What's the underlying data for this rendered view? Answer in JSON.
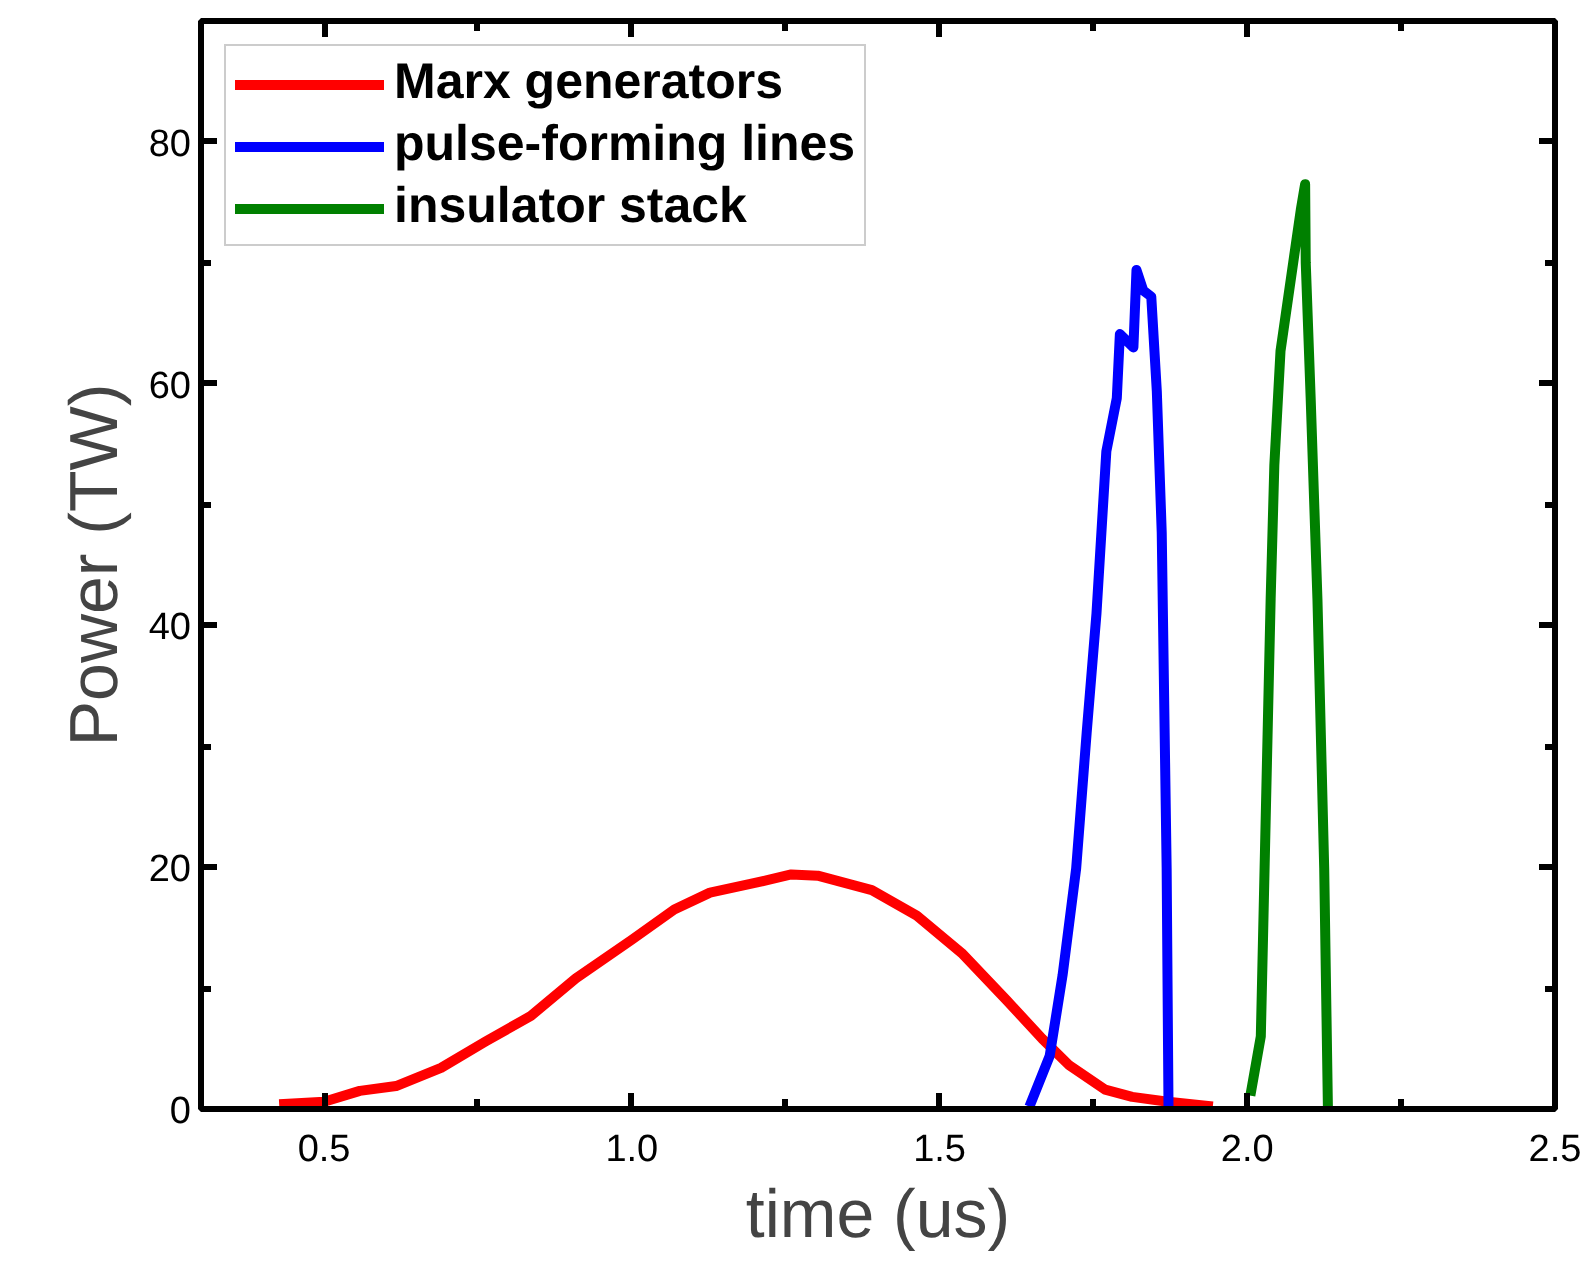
{
  "chart_data": {
    "type": "line",
    "xlabel": "time (us)",
    "ylabel": "Power (TW)",
    "xlim": [
      0.3,
      2.5
    ],
    "ylim": [
      0,
      90
    ],
    "xticks": [
      {
        "value": 0.5,
        "label": "0.5"
      },
      {
        "value": 1.0,
        "label": "1.0"
      },
      {
        "value": 1.5,
        "label": "1.5"
      },
      {
        "value": 2.0,
        "label": "2.0"
      },
      {
        "value": 2.5,
        "label": "2.5"
      }
    ],
    "yticks": [
      0,
      20,
      40,
      60,
      80
    ],
    "grid": false,
    "legend": "top left",
    "marker": "none",
    "line_style": "solid",
    "series": [
      {
        "name": "Marx generators",
        "color": "#ff0000",
        "x": [
          0.427,
          0.5,
          0.558,
          0.617,
          0.69,
          0.763,
          0.836,
          0.909,
          1.0,
          1.069,
          1.127,
          1.2,
          1.259,
          1.302,
          1.39,
          1.463,
          1.536,
          1.609,
          1.667,
          1.711,
          1.769,
          1.813,
          1.871,
          1.944
        ],
        "values": [
          0.4,
          0.6,
          1.5,
          1.9,
          3.4,
          5.6,
          7.7,
          10.8,
          14.0,
          16.5,
          17.9,
          18.7,
          19.4,
          19.3,
          18.1,
          16.0,
          12.9,
          9.0,
          5.8,
          3.6,
          1.6,
          1.0,
          0.6,
          0.2
        ]
      },
      {
        "name": "pulse-forming lines",
        "color": "#0000ff",
        "x": [
          1.646,
          1.679,
          1.7,
          1.722,
          1.739,
          1.755,
          1.771,
          1.788,
          1.793,
          1.815,
          1.82,
          1.831,
          1.844,
          1.853,
          1.861,
          1.869,
          1.872
        ],
        "values": [
          0.2,
          4.4,
          11.1,
          19.9,
          31.1,
          41.0,
          54.4,
          58.8,
          64.1,
          63.0,
          69.4,
          67.7,
          67.2,
          59.4,
          47.7,
          19.9,
          0.2
        ]
      },
      {
        "name": "insulator stack",
        "color": "#008000",
        "x": [
          2.005,
          2.022,
          2.033,
          2.038,
          2.044,
          2.054,
          2.076,
          2.087,
          2.094,
          2.095,
          2.103,
          2.114,
          2.125,
          2.131
        ],
        "values": [
          1.1,
          6.0,
          31.0,
          42.2,
          53.3,
          62.7,
          70.5,
          74.4,
          76.5,
          70.0,
          58.8,
          42.2,
          19.9,
          0.2
        ]
      }
    ]
  }
}
